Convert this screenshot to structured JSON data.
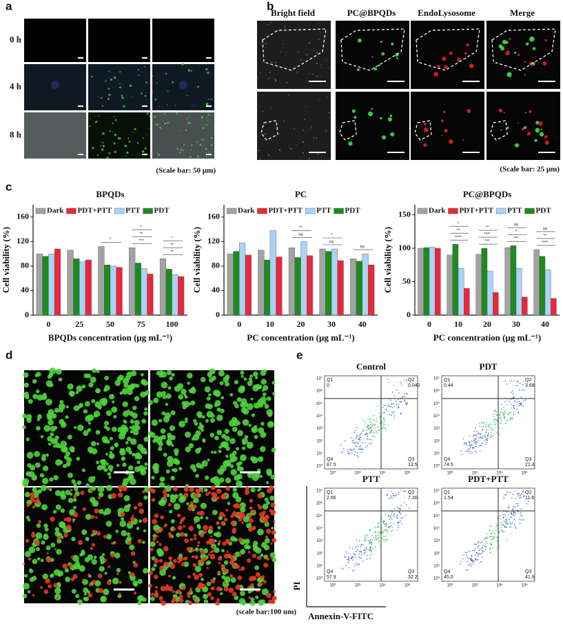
{
  "panel_a": {
    "letter": "a",
    "rows": [
      "0 h",
      "4 h",
      "8 h"
    ],
    "scale_note": "(Scale bar: 50 μm)"
  },
  "panel_b": {
    "letter": "b",
    "columns": [
      "Bright field",
      "PC@BPQDs",
      "EndoLysosome",
      "Merge"
    ],
    "scale_note": "(Scale bar: 25 μm)"
  },
  "panel_c": {
    "letter": "c"
  },
  "chart_data": [
    {
      "type": "bar",
      "title": "BPQDs",
      "x_label": "BPQDs concentration (μg mL⁻¹)",
      "y_label": "Cell viability (%)",
      "categories": [
        "0",
        "25",
        "50",
        "75",
        "100"
      ],
      "series": [
        {
          "name": "Dark",
          "color": "#a3a3a3",
          "values": [
            100,
            106,
            112,
            110,
            92
          ]
        },
        {
          "name": "PDT+PTT",
          "color": "#e8283c",
          "values": [
            108,
            90,
            78,
            67,
            63
          ]
        },
        {
          "name": "PTT",
          "color": "#a9d4f5",
          "values": [
            100,
            87,
            80,
            76,
            66
          ]
        },
        {
          "name": "PDT",
          "color": "#1f8a1f",
          "values": [
            96,
            92,
            82,
            85,
            75
          ]
        }
      ],
      "ylim": [
        0,
        180
      ],
      "yticks": [
        0,
        40,
        80,
        120,
        160
      ],
      "annotations": [
        [],
        [],
        [
          "*"
        ],
        [
          "***",
          "**",
          "*"
        ],
        [
          "**",
          "**",
          "*"
        ]
      ]
    },
    {
      "type": "bar",
      "title": "PC",
      "x_label": "PC concentration (μg mL⁻¹)",
      "y_label": "Cell viability (%)",
      "categories": [
        "0",
        "10",
        "20",
        "30",
        "40"
      ],
      "series": [
        {
          "name": "Dark",
          "color": "#a3a3a3",
          "values": [
            100,
            106,
            110,
            108,
            92
          ]
        },
        {
          "name": "PDT+PTT",
          "color": "#e8283c",
          "values": [
            98,
            95,
            97,
            89,
            82
          ]
        },
        {
          "name": "PTT",
          "color": "#a9d4f5",
          "values": [
            118,
            138,
            120,
            108,
            100
          ]
        },
        {
          "name": "PDT",
          "color": "#1f8a1f",
          "values": [
            104,
            90,
            94,
            104,
            88
          ]
        }
      ],
      "ylim": [
        0,
        180
      ],
      "yticks": [
        0,
        40,
        80,
        120,
        160
      ],
      "annotations": [
        [],
        [],
        [
          "ns",
          "**"
        ],
        [
          "ns",
          "*"
        ],
        [
          "ns"
        ]
      ]
    },
    {
      "type": "bar",
      "title": "PC@BPQDs",
      "x_label": "PC concentration (μg mL⁻¹)",
      "y_label": "Cell viability (%)",
      "categories": [
        "0",
        "10",
        "20",
        "30",
        "40"
      ],
      "series": [
        {
          "name": "Dark",
          "color": "#a3a3a3",
          "values": [
            100,
            90,
            91,
            101,
            98
          ]
        },
        {
          "name": "PDT+PTT",
          "color": "#e8283c",
          "values": [
            100,
            40,
            34,
            27,
            25
          ]
        },
        {
          "name": "PTT",
          "color": "#a9d4f5",
          "values": [
            102,
            70,
            66,
            70,
            68
          ]
        },
        {
          "name": "PDT",
          "color": "#1f8a1f",
          "values": [
            101,
            106,
            100,
            104,
            88
          ]
        }
      ],
      "ylim": [
        0,
        165
      ],
      "yticks": [
        0,
        50,
        100,
        150
      ],
      "annotations": [
        [],
        [
          "****",
          "**",
          "*"
        ],
        [
          "***",
          "****",
          "**"
        ],
        [
          "***",
          "*",
          "ns"
        ],
        [
          "****",
          "**",
          "ns"
        ]
      ]
    }
  ],
  "panel_d": {
    "letter": "d",
    "scale_note": "(scale bar:100 um)"
  },
  "panel_e": {
    "letter": "e",
    "x_label": "Annexin-V-FITC",
    "y_label": "PI",
    "x_ticks": [
      "10⁰",
      "10²",
      "10⁴",
      "10⁶"
    ],
    "y_ticks": [
      "10⁷",
      "10⁶",
      "10⁵",
      "10⁴",
      "10³",
      "10²",
      "10¹",
      "10⁰"
    ],
    "quadrants": [
      "Q1",
      "Q2",
      "Q3",
      "Q4"
    ],
    "plots": [
      {
        "title": "Control",
        "q1": "0",
        "q2": "0.040",
        "q3": "12.5",
        "q4": "87.5"
      },
      {
        "title": "PDT",
        "q1": "0.44",
        "q2": "3.68",
        "q3": "21.4",
        "q4": "74.5"
      },
      {
        "title": "PTT",
        "q1": "2.66",
        "q2": "7.30",
        "q3": "32.2",
        "q4": "57.9"
      },
      {
        "title": "PDT+PTT",
        "q1": "1.54",
        "q2": "11.6",
        "q3": "41.9",
        "q4": "45.0"
      }
    ]
  }
}
